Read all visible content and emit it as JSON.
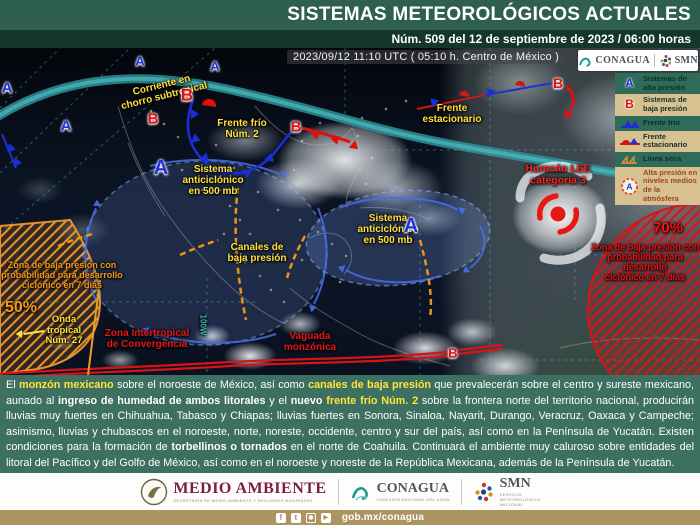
{
  "header": {
    "title": "SISTEMAS METEOROLÓGICOS ACTUALES",
    "issue": "Núm. 509 del 12 de septiembre de 2023 / 06:00 horas"
  },
  "map": {
    "timestamp": "2023/09/12 11:10 UTC ( 05:10 h. Centro de México )",
    "logo_box": {
      "conagua": "CONAGUA",
      "smn": "SMN"
    },
    "symbols": {
      "high": "A",
      "low": "B"
    },
    "labels": {
      "jet_stream": "Corriente en\nchorro subtropical",
      "cold_front": "Frente frío\nNúm. 2",
      "stationary_front": "Frente\nestacionario",
      "anticyclone_west": "Sistema\nanticiclónico\nen 500 mb",
      "anticyclone_east": "Sistema\nanticiclónico\nen 500 mb",
      "low_pressure_channels": "Canales de\nbaja presión",
      "hurricane": "Huracán LEE\ncategoría 3",
      "tropical_wave": "Onda\ntropical\nNúm. 27",
      "itcz": "Zona Intertropical\nde Convergencia",
      "monsoon_trough": "Vaguada\nmonzónica",
      "dev_zone_west_pct": "50%",
      "dev_zone_west": "Zona de baja presión con\nprobabilidad para desarrollo\nciclónico en 7 días",
      "dev_zone_east_pct": "70%",
      "dev_zone_east": "Zona de baja presión con\nprobabilidad para desarrollo\nciclónico en 7 días",
      "meridian_100w": "100W"
    }
  },
  "legend": {
    "items": [
      {
        "symbol": "A",
        "label": "Sistemas de\nalta presión"
      },
      {
        "symbol": "B",
        "label": "Sistemas de\nbaja presión"
      },
      {
        "symbol": "cold-front",
        "label": "Frente frío"
      },
      {
        "symbol": "stationary-front",
        "label": "Frente\nestacionario"
      },
      {
        "symbol": "dry-line",
        "label": "Línea seca"
      },
      {
        "symbol": "mid-level-high",
        "label": "Alta presión en\nniveles medios\nde la atmósfera"
      }
    ]
  },
  "summary": {
    "segments": [
      {
        "t": "El "
      },
      {
        "t": "monzón mexicano",
        "s": "hl"
      },
      {
        "t": " sobre el noroeste de México, así como "
      },
      {
        "t": "canales de baja presión",
        "s": "hl"
      },
      {
        "t": " que prevalecerán sobre el centro y sureste mexicano, aunado al "
      },
      {
        "t": "ingreso de humedad de ambos litorales",
        "s": "b"
      },
      {
        "t": " y el "
      },
      {
        "t": "nuevo",
        "s": "b"
      },
      {
        "t": " "
      },
      {
        "t": "frente frío Núm. 2",
        "s": "hl"
      },
      {
        "t": " sobre la frontera norte del territorio nacional, producirán lluvias muy fuertes en Chihuahua, Tabasco y Chiapas; lluvias fuertes en Sonora, Sinaloa, Nayarit, Durango, Veracruz, Oaxaca y Campeche; asimismo, lluvias y chubascos en el noroeste, norte, noreste, occidente, centro y sur del país, así como en la Península de Yucatán. Existen condiciones para la formación de "
      },
      {
        "t": "torbellinos o tornados",
        "s": "b"
      },
      {
        "t": " en el norte de Coahuila. Continuará el ambiente muy caluroso sobre entidades del litoral del Pacífico y del Golfo de México, así como en el noroeste y noreste de la República Mexicana, además de la Península de Yucatán."
      }
    ]
  },
  "footer": {
    "agencies": [
      {
        "name": "MEDIO AMBIENTE",
        "sub": "SECRETARÍA DE MEDIO AMBIENTE Y RECURSOS NATURALES"
      },
      {
        "name": "CONAGUA",
        "sub": "COMISIÓN NACIONAL DEL AGUA"
      },
      {
        "name": "SMN",
        "sub": "SERVICIO METEOROLÓGICO NACIONAL"
      }
    ],
    "url": "gob.mx/conagua",
    "social": [
      {
        "name": "facebook-icon",
        "glyph": "f"
      },
      {
        "name": "twitter-icon",
        "glyph": "t"
      },
      {
        "name": "instagram-icon",
        "glyph": "◉"
      },
      {
        "name": "youtube-icon",
        "glyph": "▶"
      }
    ]
  },
  "colors": {
    "header_green": "#2e5f51",
    "header_dark": "#14362c",
    "summary_green": "#3d7060",
    "gold_bar": "#ab945f",
    "label_yellow": "#ffe23e",
    "label_red": "#ff241c",
    "label_orange": "#f59a1c",
    "high_blue": "#2030e0",
    "low_red": "#e01010"
  }
}
